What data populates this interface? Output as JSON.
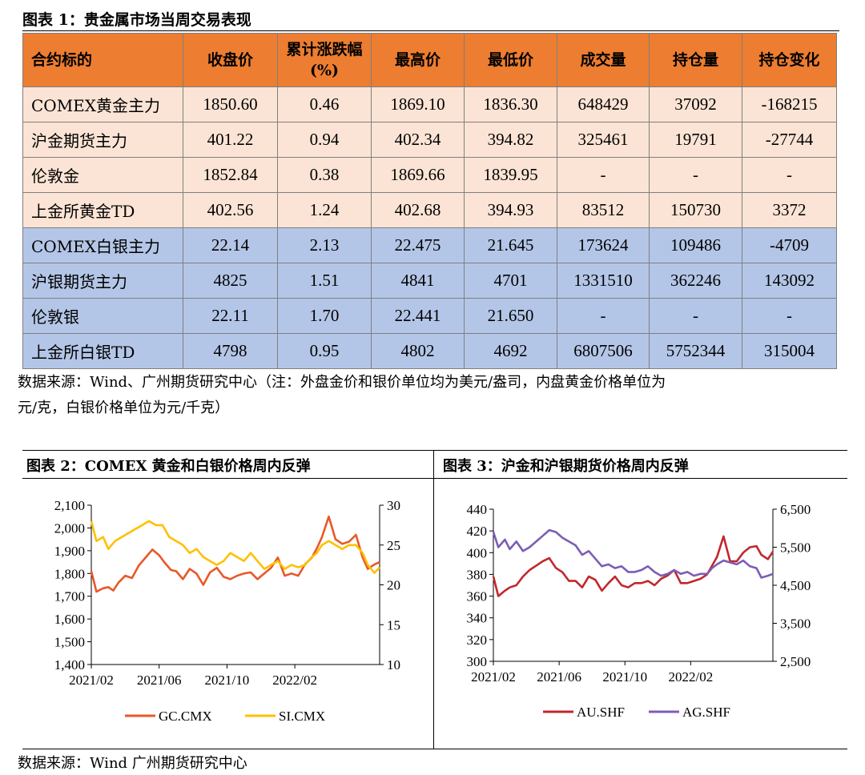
{
  "table_title": "图表 1：贵金属市场当周交易表现",
  "table": {
    "headers": [
      "合约标的",
      "收盘价",
      "累计涨跌幅(%)",
      "最高价",
      "最低价",
      "成交量",
      "持仓量",
      "持仓变化"
    ],
    "rows": [
      {
        "group": "gold",
        "cells": [
          "COMEX黄金主力",
          "1850.60",
          "0.46",
          "1869.10",
          "1836.30",
          "648429",
          "37092",
          "-168215"
        ]
      },
      {
        "group": "gold",
        "cells": [
          "沪金期货主力",
          "401.22",
          "0.94",
          "402.34",
          "394.82",
          "325461",
          "19791",
          "-27744"
        ]
      },
      {
        "group": "gold",
        "cells": [
          "伦敦金",
          "1852.84",
          "0.38",
          "1869.66",
          "1839.95",
          "-",
          "-",
          "-"
        ]
      },
      {
        "group": "gold",
        "cells": [
          "上金所黄金TD",
          "402.56",
          "1.24",
          "402.68",
          "394.93",
          "83512",
          "150730",
          "3372"
        ]
      },
      {
        "group": "silver",
        "cells": [
          "COMEX白银主力",
          "22.14",
          "2.13",
          "22.475",
          "21.645",
          "173624",
          "109486",
          "-4709"
        ]
      },
      {
        "group": "silver",
        "cells": [
          "沪银期货主力",
          "4825",
          "1.51",
          "4841",
          "4701",
          "1331510",
          "362246",
          "143092"
        ]
      },
      {
        "group": "silver",
        "cells": [
          "伦敦银",
          "22.11",
          "1.70",
          "22.441",
          "21.650",
          "-",
          "-",
          "-"
        ]
      },
      {
        "group": "silver",
        "cells": [
          "上金所白银TD",
          "4798",
          "0.95",
          "4802",
          "4692",
          "6807506",
          "5752344",
          "315004"
        ]
      }
    ]
  },
  "table_note_line1": "数据来源：Wind、广州期货研究中心（注：外盘金价和银价单位均为美元/盎司，内盘黄金价格单位为",
  "table_note_line2": "元/克，白银价格单位为元/千克）",
  "chart2_title": "图表 2：COMEX 黄金和白银价格周内反弹",
  "chart3_title": "图表 3：沪金和沪银期货价格周内反弹",
  "footer_source": "数据来源：Wind  广州期货研究中心",
  "colors": {
    "header_orange": "#ED7D31",
    "gold_row": "#FBE4D5",
    "silver_row": "#B4C6E7",
    "gold_line": "#E8582A",
    "silver_line": "#FFC000",
    "au_line": "#C0282D",
    "ag_line": "#7C5DB5"
  },
  "chart_data": [
    {
      "type": "line",
      "x_ticks": [
        "2021/02",
        "2021/06",
        "2021/10",
        "2022/02"
      ],
      "y_left_ticks": [
        "1,400",
        "1,500",
        "1,600",
        "1,700",
        "1,800",
        "1,900",
        "2,000",
        "2,100"
      ],
      "y_right_ticks": [
        "10",
        "15",
        "20",
        "25",
        "30"
      ],
      "ylim_left": [
        1400,
        2100
      ],
      "ylim_right": [
        10,
        30
      ],
      "xlim": [
        0,
        17
      ],
      "legend_placement": "bottom",
      "series": [
        {
          "name": "GC.CMX",
          "axis": "left",
          "color": "#E8582A",
          "x": [
            0,
            0.3,
            0.7,
            1,
            1.3,
            1.6,
            2,
            2.4,
            2.8,
            3.2,
            3.6,
            4,
            4.3,
            4.7,
            5,
            5.4,
            5.8,
            6.2,
            6.6,
            7,
            7.4,
            7.8,
            8.2,
            8.6,
            9,
            9.4,
            9.8,
            10.2,
            10.6,
            11,
            11.4,
            11.8,
            12.2,
            12.6,
            13,
            13.3,
            13.6,
            14,
            14.4,
            14.8,
            15.2,
            15.6,
            16,
            16.3,
            16.7,
            17
          ],
          "y": [
            1810,
            1720,
            1735,
            1740,
            1725,
            1760,
            1790,
            1780,
            1835,
            1870,
            1905,
            1880,
            1850,
            1815,
            1810,
            1775,
            1820,
            1800,
            1750,
            1805,
            1825,
            1785,
            1775,
            1790,
            1800,
            1805,
            1775,
            1800,
            1825,
            1870,
            1790,
            1800,
            1790,
            1840,
            1870,
            1910,
            1960,
            2050,
            1950,
            1930,
            1940,
            1970,
            1870,
            1820,
            1840,
            1850
          ]
        },
        {
          "name": "SI.CMX",
          "axis": "right",
          "color": "#FFC000",
          "x": [
            0,
            0.3,
            0.7,
            1,
            1.4,
            1.8,
            2.2,
            2.6,
            3,
            3.4,
            3.8,
            4.2,
            4.6,
            5,
            5.4,
            5.8,
            6.2,
            6.6,
            7,
            7.4,
            7.8,
            8.2,
            8.6,
            9,
            9.4,
            9.8,
            10.2,
            10.6,
            11,
            11.4,
            11.8,
            12.2,
            12.6,
            13,
            13.3,
            13.6,
            14,
            14.4,
            14.8,
            15.2,
            15.6,
            16,
            16.3,
            16.7,
            17
          ],
          "y": [
            28,
            25.5,
            26,
            24.5,
            25.5,
            26,
            26.5,
            27,
            27.5,
            28,
            27.5,
            27.5,
            26,
            25.5,
            25,
            24,
            24.5,
            23.5,
            23,
            22.5,
            23,
            24,
            23.5,
            23,
            24,
            23,
            22,
            22.5,
            23,
            22,
            22.5,
            22.2,
            22.5,
            23.5,
            24,
            25,
            25.5,
            25,
            24.5,
            25,
            25,
            24,
            22.5,
            21.5,
            22.2
          ]
        }
      ]
    },
    {
      "type": "line",
      "x_ticks": [
        "2021/02",
        "2021/06",
        "2021/10",
        "2022/02"
      ],
      "y_left_ticks": [
        "300",
        "320",
        "340",
        "360",
        "380",
        "400",
        "420",
        "440"
      ],
      "y_right_ticks": [
        "2,500",
        "3,500",
        "4,500",
        "5,500",
        "6,500"
      ],
      "ylim_left": [
        300,
        440
      ],
      "ylim_right": [
        2500,
        6500
      ],
      "xlim": [
        0,
        17
      ],
      "legend_placement": "bottom",
      "series": [
        {
          "name": "AU.SHF",
          "axis": "left",
          "color": "#C0282D",
          "x": [
            0,
            0.3,
            0.7,
            1,
            1.4,
            1.8,
            2.2,
            2.6,
            3,
            3.4,
            3.8,
            4.2,
            4.6,
            5,
            5.4,
            5.8,
            6.2,
            6.6,
            7,
            7.4,
            7.8,
            8.2,
            8.6,
            9,
            9.4,
            9.8,
            10.2,
            10.6,
            11,
            11.4,
            11.8,
            12.2,
            12.6,
            13,
            13.3,
            13.6,
            14,
            14.4,
            14.8,
            15.2,
            15.6,
            16,
            16.3,
            16.7,
            17
          ],
          "y": [
            378,
            360,
            365,
            368,
            370,
            378,
            384,
            388,
            392,
            395,
            386,
            382,
            374,
            374,
            368,
            378,
            375,
            365,
            372,
            378,
            370,
            368,
            372,
            372,
            374,
            370,
            376,
            379,
            384,
            372,
            372,
            374,
            376,
            380,
            388,
            396,
            415,
            392,
            392,
            400,
            405,
            406,
            398,
            394,
            401
          ]
        },
        {
          "name": "AG.SHF",
          "axis": "right",
          "color": "#7C5DB5",
          "x": [
            0,
            0.3,
            0.7,
            1,
            1.4,
            1.8,
            2.2,
            2.6,
            3,
            3.4,
            3.8,
            4.2,
            4.6,
            5,
            5.4,
            5.8,
            6.2,
            6.6,
            7,
            7.4,
            7.8,
            8.2,
            8.6,
            9,
            9.4,
            9.8,
            10.2,
            10.6,
            11,
            11.4,
            11.8,
            12.2,
            12.6,
            13,
            13.3,
            13.6,
            14,
            14.4,
            14.8,
            15.2,
            15.6,
            16,
            16.3,
            16.7,
            17
          ],
          "y": [
            5900,
            5500,
            5700,
            5450,
            5650,
            5400,
            5500,
            5650,
            5800,
            5950,
            5900,
            5750,
            5650,
            5550,
            5300,
            5400,
            5200,
            5000,
            5050,
            4950,
            5000,
            4850,
            4850,
            4900,
            5000,
            4850,
            4750,
            4800,
            4900,
            4800,
            4850,
            4750,
            4800,
            4800,
            4950,
            5050,
            5150,
            5100,
            5050,
            5150,
            5000,
            4950,
            4700,
            4750,
            4800
          ]
        }
      ]
    }
  ]
}
